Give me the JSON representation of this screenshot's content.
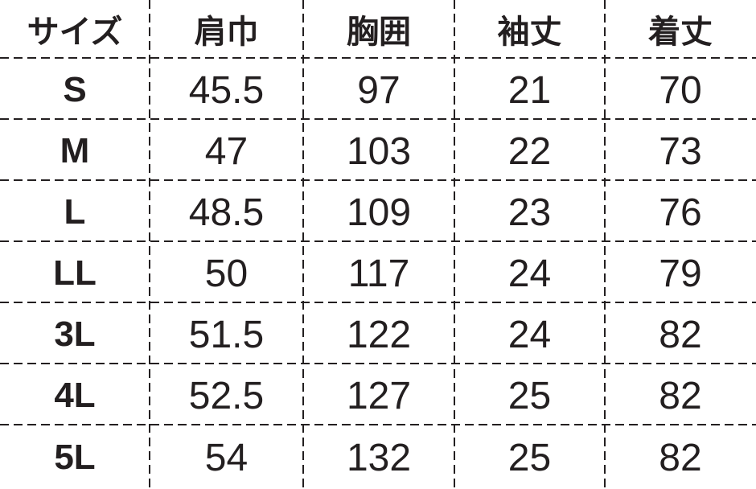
{
  "headers": [
    "サイズ",
    "肩巾",
    "胸囲",
    "袖丈",
    "着丈"
  ],
  "rows": [
    [
      "S",
      "45.5",
      "97",
      "21",
      "70"
    ],
    [
      "M",
      "47",
      "103",
      "22",
      "73"
    ],
    [
      "L",
      "48.5",
      "109",
      "23",
      "76"
    ],
    [
      "LL",
      "50",
      "117",
      "24",
      "79"
    ],
    [
      "3L",
      "51.5",
      "122",
      "24",
      "82"
    ],
    [
      "4L",
      "52.5",
      "127",
      "25",
      "82"
    ],
    [
      "5L",
      "54",
      "132",
      "25",
      "82"
    ]
  ],
  "colors": {
    "text": "#231f20",
    "background": "#ffffff"
  }
}
